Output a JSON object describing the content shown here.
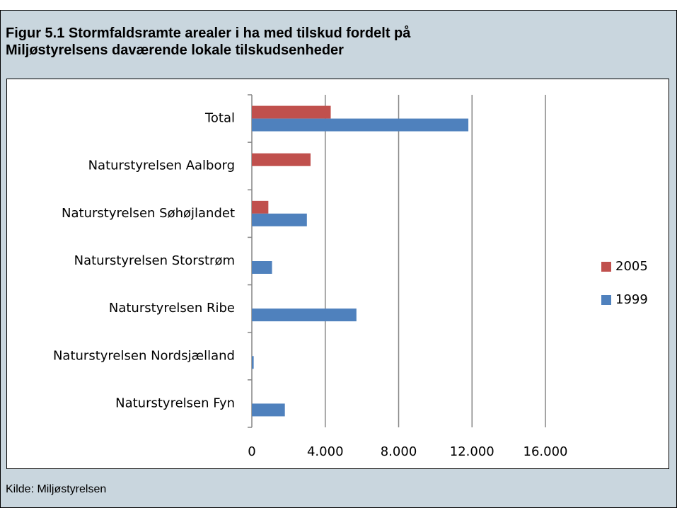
{
  "header": {
    "title_line1": "Figur 5.1 Stormfaldsramte arealer i ha med tilskud fordelt på",
    "title_line2": "Miljøstyrelsens daværende lokale tilskudsenheder"
  },
  "footer": {
    "source": "Kilde: Miljøstyrelsen"
  },
  "chart_data": {
    "type": "bar",
    "orientation": "horizontal",
    "categories": [
      "Total",
      "Naturstyrelsen Aalborg",
      "Naturstyrelsen Søhøjlandet",
      "Naturstyrelsen Storstrøm",
      "Naturstyrelsen Ribe",
      "Naturstyrelsen Nordsjælland",
      "Naturstyrelsen Fyn"
    ],
    "series": [
      {
        "name": "2005",
        "color": "#c0504d",
        "values": [
          4300,
          3200,
          900,
          0,
          0,
          0,
          0
        ]
      },
      {
        "name": "1999",
        "color": "#4f81bd",
        "values": [
          11800,
          0,
          3000,
          1100,
          5700,
          100,
          1800
        ]
      }
    ],
    "xlim": [
      0,
      16000
    ],
    "xticks": [
      0,
      {
        "value": 4000,
        "label": "4.000"
      },
      {
        "value": 8000,
        "label": "8.000"
      },
      {
        "value": 12000,
        "label": "12.000"
      },
      {
        "value": 16000,
        "label": "16.000"
      }
    ],
    "grid": true,
    "legend": "right"
  }
}
